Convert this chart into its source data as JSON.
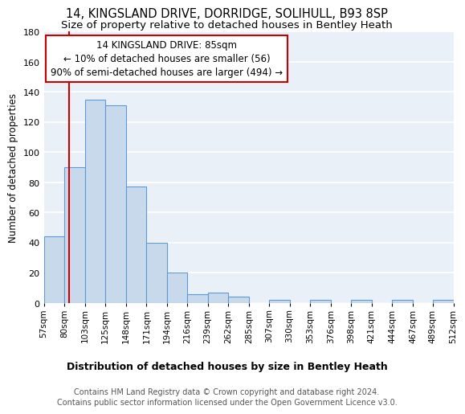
{
  "title1": "14, KINGSLAND DRIVE, DORRIDGE, SOLIHULL, B93 8SP",
  "title2": "Size of property relative to detached houses in Bentley Heath",
  "xlabel": "Distribution of detached houses by size in Bentley Heath",
  "ylabel": "Number of detached properties",
  "bar_edges": [
    57,
    80,
    103,
    125,
    148,
    171,
    194,
    216,
    239,
    262,
    285,
    307,
    330,
    353,
    376,
    398,
    421,
    444,
    467,
    489,
    512
  ],
  "bar_heights": [
    44,
    90,
    135,
    131,
    77,
    40,
    20,
    6,
    7,
    4,
    0,
    2,
    0,
    2,
    0,
    2,
    0,
    2,
    0,
    2
  ],
  "bar_color": "#c9d9ec",
  "bar_edge_color": "#5b9bd5",
  "bar_linewidth": 0.8,
  "bg_color": "#eaf0f8",
  "grid_color": "#ffffff",
  "annotation_box_color": "#ffffff",
  "annotation_border_color": "#cc0000",
  "annotation_line1": "14 KINGSLAND DRIVE: 85sqm",
  "annotation_line2": "← 10% of detached houses are smaller (56)",
  "annotation_line3": "90% of semi-detached houses are larger (494) →",
  "vline_x": 85,
  "vline_color": "#cc0000",
  "ylim": [
    0,
    180
  ],
  "yticks": [
    0,
    20,
    40,
    60,
    80,
    100,
    120,
    140,
    160,
    180
  ],
  "tick_labels": [
    "57sqm",
    "80sqm",
    "103sqm",
    "125sqm",
    "148sqm",
    "171sqm",
    "194sqm",
    "216sqm",
    "239sqm",
    "262sqm",
    "285sqm",
    "307sqm",
    "330sqm",
    "353sqm",
    "376sqm",
    "398sqm",
    "421sqm",
    "444sqm",
    "467sqm",
    "489sqm",
    "512sqm"
  ],
  "footer": "Contains HM Land Registry data © Crown copyright and database right 2024.\nContains public sector information licensed under the Open Government Licence v3.0.",
  "title1_fontsize": 10.5,
  "title2_fontsize": 9.5,
  "xlabel_fontsize": 9,
  "ylabel_fontsize": 8.5,
  "tick_fontsize": 7.5,
  "footer_fontsize": 7,
  "annotation_fontsize": 8.5
}
